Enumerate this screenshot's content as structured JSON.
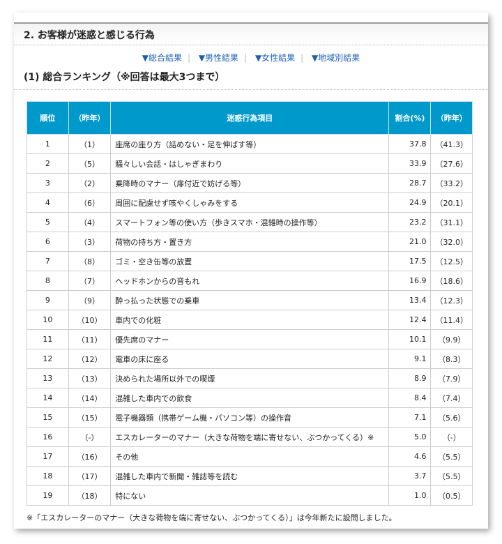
{
  "section_title": "2. お客様が迷惑と感じる行為",
  "links": [
    "▼総合結果",
    "▼男性結果",
    "▼女性結果",
    "▼地域別結果"
  ],
  "subtitle": "(1) 総合ランキング（※回答は最大3つまで）",
  "table": {
    "headers": [
      "順位",
      "（昨年）",
      "迷惑行為項目",
      "割合(%)",
      "（昨年）"
    ],
    "rows": [
      [
        "1",
        "（1）",
        "座席の座り方（詰めない・足を伸ばす等）",
        "37.8",
        "（41.3）"
      ],
      [
        "2",
        "（5）",
        "騒々しい会話・はしゃぎまわり",
        "33.9",
        "（27.6）"
      ],
      [
        "3",
        "（2）",
        "乗降時のマナー（扉付近で妨げる等）",
        "28.7",
        "（33.2）"
      ],
      [
        "4",
        "（6）",
        "周囲に配慮せず咳やくしゃみをする",
        "24.9",
        "（20.1）"
      ],
      [
        "5",
        "（4）",
        "スマートフォン等の使い方（歩きスマホ・混雑時の操作等）",
        "23.2",
        "（31.1）"
      ],
      [
        "6",
        "（3）",
        "荷物の持ち方・置き方",
        "21.0",
        "（32.0）"
      ],
      [
        "7",
        "（8）",
        "ゴミ・空き缶等の放置",
        "17.5",
        "（12.5）"
      ],
      [
        "8",
        "（7）",
        "ヘッドホンからの音もれ",
        "16.9",
        "（18.6）"
      ],
      [
        "9",
        "（9）",
        "酔っ払った状態での乗車",
        "13.4",
        "（12.3）"
      ],
      [
        "10",
        "（10）",
        "車内での化粧",
        "12.4",
        "（11.4）"
      ],
      [
        "11",
        "（11）",
        "優先席のマナー",
        "10.1",
        "（9.9）"
      ],
      [
        "12",
        "（12）",
        "電車の床に座る",
        "9.1",
        "（8.3）"
      ],
      [
        "13",
        "（13）",
        "決められた場所以外での喫煙",
        "8.9",
        "（7.9）"
      ],
      [
        "14",
        "（14）",
        "混雑した車内での飲食",
        "8.4",
        "（7.4）"
      ],
      [
        "15",
        "（15）",
        "電子機器類（携帯ゲーム機・パソコン等）の操作音",
        "7.1",
        "（5.6）"
      ],
      [
        "16",
        "（-）",
        "エスカレーターのマナー（大きな荷物を端に寄せない、ぶつかってくる）※",
        "5.0",
        "（-）"
      ],
      [
        "17",
        "（16）",
        "その他",
        "4.6",
        "（5.5）"
      ],
      [
        "18",
        "（17）",
        "混雑した車内で新聞・雑誌等を読む",
        "3.7",
        "（5.5）"
      ],
      [
        "19",
        "（18）",
        "特にない",
        "1.0",
        "（0.5）"
      ]
    ]
  },
  "footnote": "※「エスカレーターのマナー（大きな荷物を端に寄せない、ぶつかってくる）」は今年新たに設問しました。",
  "colors": {
    "header_bg": "#0099cc",
    "link": "#1a5fb4"
  }
}
